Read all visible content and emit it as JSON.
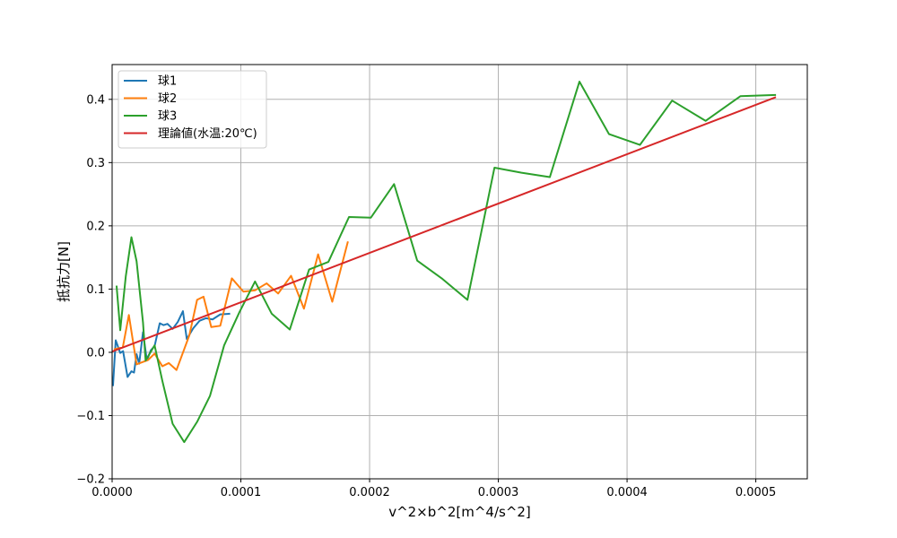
{
  "chart_data": {
    "type": "line",
    "title": "",
    "xlabel": "v^2×b^2[m^4/s^2]",
    "ylabel": "抵抗力[N]",
    "xlim": [
      0,
      0.00054
    ],
    "ylim": [
      -0.2,
      0.455
    ],
    "grid": true,
    "legend_position": "top-left",
    "x_ticks": [
      0.0,
      0.0001,
      0.0002,
      0.0003,
      0.0004,
      0.0005
    ],
    "x_tick_labels": [
      "0.0000",
      "0.0001",
      "0.0002",
      "0.0003",
      "0.0004",
      "0.0005"
    ],
    "y_ticks": [
      -0.2,
      -0.1,
      0.0,
      0.1,
      0.2,
      0.3,
      0.4
    ],
    "y_tick_labels": [
      "−0.2",
      "−0.1",
      "0.0",
      "0.1",
      "0.2",
      "0.3",
      "0.4"
    ],
    "series": [
      {
        "name": "球1",
        "color": "#1f77b4",
        "points": [
          [
            7e-07,
            -0.052
          ],
          [
            2.8e-06,
            0.019
          ],
          [
            6.3e-06,
            -0.001
          ],
          [
            8.5e-06,
            0.002
          ],
          [
            1.2e-05,
            -0.039
          ],
          [
            1.5e-05,
            -0.03
          ],
          [
            1.7e-05,
            -0.032
          ],
          [
            1.9e-05,
            -0.003
          ],
          [
            2.1e-05,
            -0.018
          ],
          [
            2.4e-05,
            0.032
          ],
          [
            2.7e-05,
            -0.013
          ],
          [
            3e-05,
            0.003
          ],
          [
            3.3e-05,
            0.01
          ],
          [
            3.7e-05,
            0.046
          ],
          [
            4e-05,
            0.043
          ],
          [
            4.3e-05,
            0.045
          ],
          [
            4.7e-05,
            0.037
          ],
          [
            5.1e-05,
            0.048
          ],
          [
            5.5e-05,
            0.065
          ],
          [
            5.8e-05,
            0.021
          ],
          [
            6.3e-05,
            0.038
          ],
          [
            6.8e-05,
            0.05
          ],
          [
            7.3e-05,
            0.054
          ],
          [
            7.8e-05,
            0.052
          ],
          [
            8.4e-05,
            0.06
          ],
          [
            9.1e-05,
            0.061
          ]
        ]
      },
      {
        "name": "球2",
        "color": "#ff7f0e",
        "points": [
          [
            2.1e-06,
            0.005
          ],
          [
            8.3e-06,
            0.008
          ],
          [
            1.3e-05,
            0.059
          ],
          [
            1.9e-05,
            -0.019
          ],
          [
            2.8e-05,
            -0.012
          ],
          [
            3.3e-05,
            -0.002
          ],
          [
            3.9e-05,
            -0.022
          ],
          [
            4.4e-05,
            -0.017
          ],
          [
            5e-05,
            -0.028
          ],
          [
            6e-05,
            0.027
          ],
          [
            6.6e-05,
            0.083
          ],
          [
            7.1e-05,
            0.088
          ],
          [
            7.7e-05,
            0.04
          ],
          [
            8.4e-05,
            0.042
          ],
          [
            9.3e-05,
            0.117
          ],
          [
            0.000102,
            0.096
          ],
          [
            0.000111,
            0.098
          ],
          [
            0.00012,
            0.109
          ],
          [
            0.000129,
            0.093
          ],
          [
            0.000139,
            0.121
          ],
          [
            0.000149,
            0.069
          ],
          [
            0.00016,
            0.155
          ],
          [
            0.000171,
            0.08
          ],
          [
            0.000183,
            0.174
          ]
        ]
      },
      {
        "name": "球3",
        "color": "#2ca02c",
        "points": [
          [
            3.5e-06,
            0.104
          ],
          [
            6.3e-06,
            0.035
          ],
          [
            1.06e-05,
            0.12
          ],
          [
            1.5e-05,
            0.182
          ],
          [
            1.9e-05,
            0.144
          ],
          [
            2.4e-05,
            0.047
          ],
          [
            2.6e-05,
            -0.013
          ],
          [
            3.3e-05,
            0.011
          ],
          [
            3.9e-05,
            -0.045
          ],
          [
            4.7e-05,
            -0.113
          ],
          [
            5.6e-05,
            -0.142
          ],
          [
            6.6e-05,
            -0.11
          ],
          [
            7.6e-05,
            -0.069
          ],
          [
            8.7e-05,
            0.011
          ],
          [
            9.9e-05,
            0.064
          ],
          [
            0.000111,
            0.112
          ],
          [
            0.000124,
            0.061
          ],
          [
            0.000138,
            0.036
          ],
          [
            0.000153,
            0.131
          ],
          [
            0.000168,
            0.143
          ],
          [
            0.000184,
            0.214
          ],
          [
            0.000201,
            0.213
          ],
          [
            0.000219,
            0.266
          ],
          [
            0.000237,
            0.145
          ],
          [
            0.000256,
            0.117
          ],
          [
            0.000276,
            0.083
          ],
          [
            0.000297,
            0.292
          ],
          [
            0.000318,
            0.284
          ],
          [
            0.00034,
            0.277
          ],
          [
            0.000363,
            0.428
          ],
          [
            0.000386,
            0.345
          ],
          [
            0.00041,
            0.328
          ],
          [
            0.000435,
            0.398
          ],
          [
            0.000461,
            0.366
          ],
          [
            0.000488,
            0.405
          ],
          [
            0.000515,
            0.407
          ]
        ]
      },
      {
        "name": "理論値(水温:20℃)",
        "color": "#d62728",
        "points": [
          [
            7e-07,
            0.0017
          ],
          [
            0.000515,
            0.403
          ]
        ]
      }
    ]
  }
}
